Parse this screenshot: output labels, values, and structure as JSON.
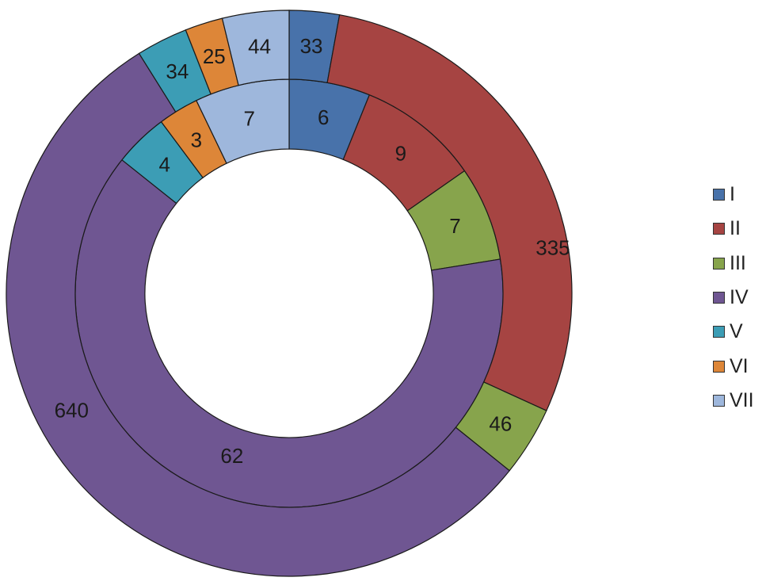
{
  "chart_data": {
    "type": "pie",
    "variant": "nested-donut",
    "categories": [
      "I",
      "II",
      "III",
      "IV",
      "V",
      "VI",
      "VII"
    ],
    "colors": [
      "#4872aa",
      "#a64442",
      "#87a44c",
      "#6f5692",
      "#3c9db5",
      "#dd8638",
      "#9eb7dc"
    ],
    "series": [
      {
        "ring": "inner",
        "values": [
          6,
          9,
          7,
          62,
          4,
          3,
          7
        ]
      },
      {
        "ring": "outer",
        "values": [
          33,
          335,
          46,
          640,
          34,
          25,
          44
        ]
      }
    ],
    "legend_position": "right"
  }
}
